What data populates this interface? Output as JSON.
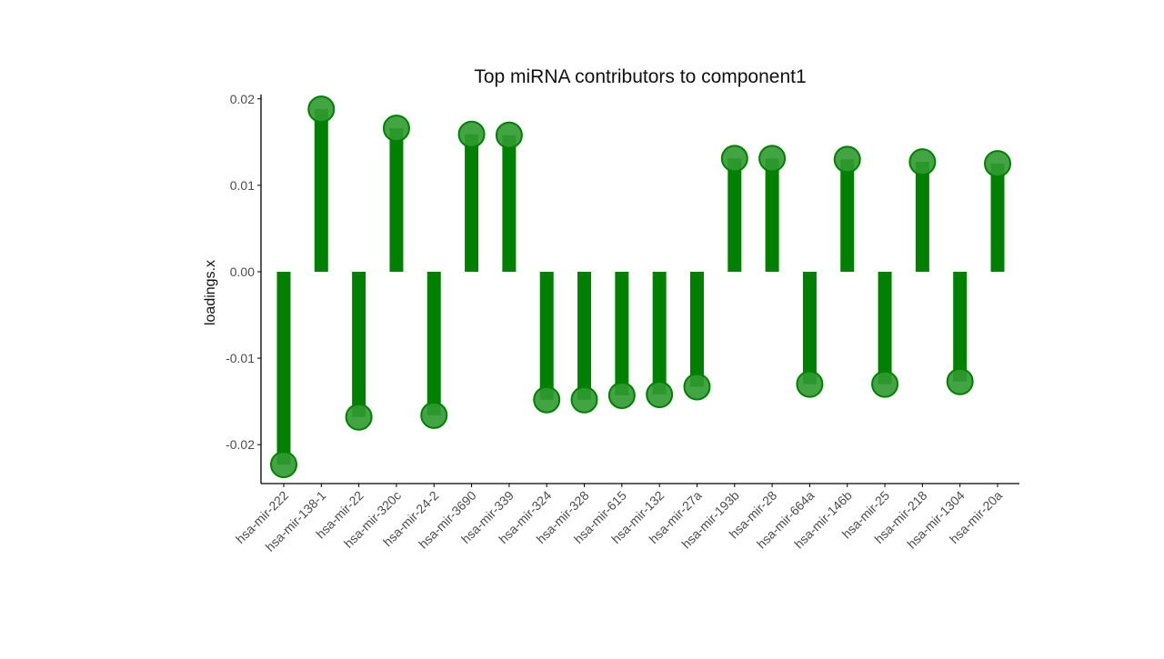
{
  "chart_data": {
    "type": "lollipop",
    "title": "Top miRNA contributors to component1",
    "xlabel": "",
    "ylabel": "loadings.x",
    "ylim": [
      -0.0245,
      0.0205
    ],
    "yticks": [
      0.02,
      0.01,
      0.0,
      -0.01,
      -0.02
    ],
    "ytick_labels": [
      "0.02",
      "0.01",
      "0.00",
      "-0.01",
      "-0.02"
    ],
    "grid": false,
    "legend": "none",
    "colors": {
      "stem": "#008000",
      "point_fill": "#2f9a2f",
      "point_edge": "#008000",
      "axis": "#000000",
      "text": "#4d4d4d"
    },
    "categories": [
      "hsa-mir-222",
      "hsa-mir-138-1",
      "hsa-mir-22",
      "hsa-mir-320c",
      "hsa-mir-24-2",
      "hsa-mir-3690",
      "hsa-mir-339",
      "hsa-mir-324",
      "hsa-mir-328",
      "hsa-mir-615",
      "hsa-mir-132",
      "hsa-mir-27a",
      "hsa-mir-193b",
      "hsa-mir-28",
      "hsa-mir-664a",
      "hsa-mir-146b",
      "hsa-mir-25",
      "hsa-mir-218",
      "hsa-mir-1304",
      "hsa-mir-20a"
    ],
    "values": [
      -0.0223,
      0.0188,
      -0.0168,
      0.0166,
      -0.0166,
      0.0159,
      0.0158,
      -0.0148,
      -0.0148,
      -0.0143,
      -0.0142,
      -0.0133,
      0.0131,
      0.0131,
      -0.013,
      0.013,
      -0.013,
      0.0127,
      -0.0127,
      0.0125
    ]
  }
}
